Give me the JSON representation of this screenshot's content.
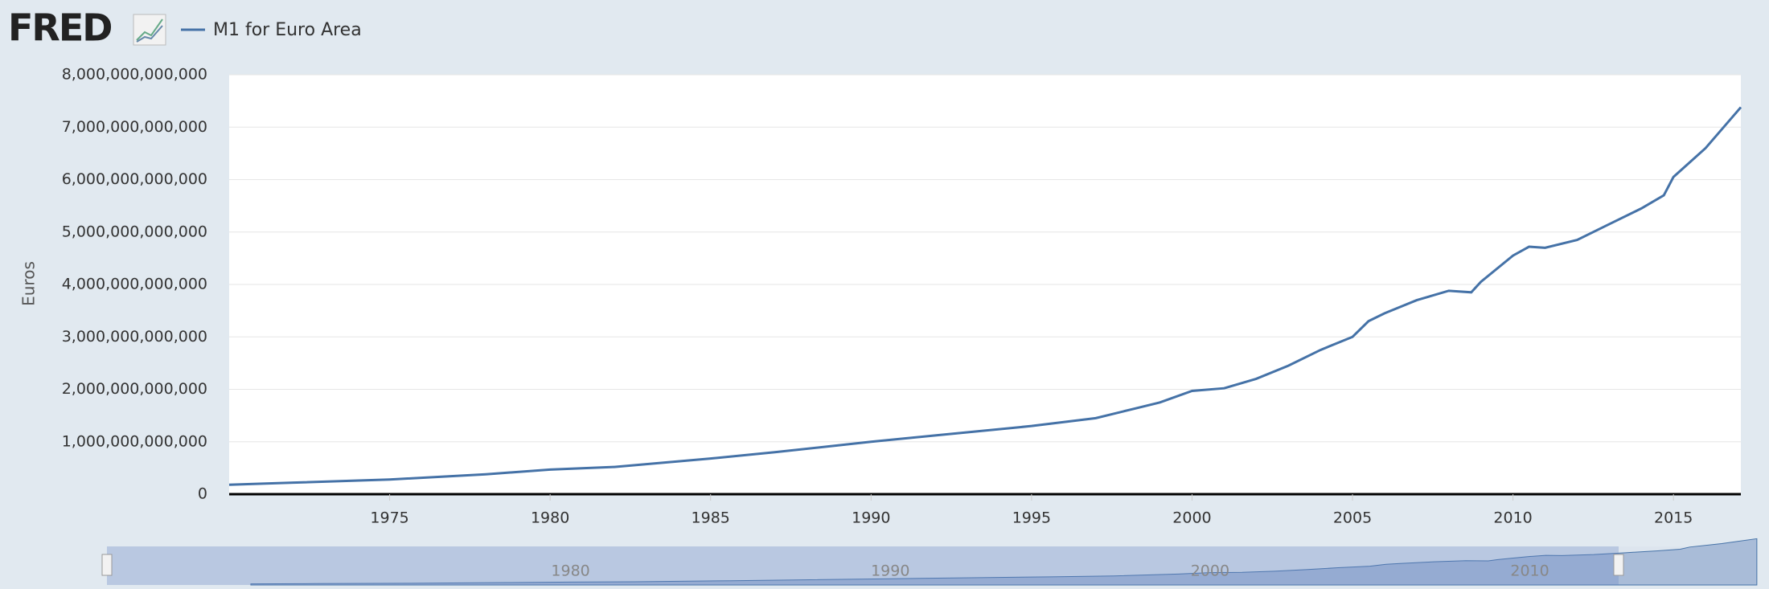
{
  "header": {
    "logo": "FRED"
  },
  "chart_data": {
    "type": "line",
    "y_label": "Euros",
    "x": [
      1970,
      1972,
      1975,
      1978,
      1980,
      1982,
      1985,
      1987,
      1990,
      1992,
      1995,
      1997,
      1999,
      2000,
      2001,
      2002,
      2003,
      2004,
      2005,
      2005.5,
      2006,
      2007,
      2008,
      2008.7,
      2009,
      2010,
      2010.5,
      2011,
      2012,
      2013,
      2014,
      2014.7,
      2015,
      2016,
      2017.1
    ],
    "series": [
      {
        "name": "M1 for Euro Area",
        "color": "#4572a7",
        "values": [
          180000000000,
          220000000000,
          280000000000,
          380000000000,
          470000000000,
          520000000000,
          680000000000,
          800000000000,
          1000000000000,
          1120000000000,
          1300000000000,
          1450000000000,
          1750000000000,
          1970000000000,
          2020000000000,
          2200000000000,
          2450000000000,
          2750000000000,
          3000000000000,
          3300000000000,
          3450000000000,
          3700000000000,
          3880000000000,
          3850000000000,
          4050000000000,
          4550000000000,
          4720000000000,
          4700000000000,
          4850000000000,
          5150000000000,
          5450000000000,
          5700000000000,
          6050000000000,
          6600000000000,
          7380000000000
        ]
      }
    ],
    "xlim": [
      1970,
      2017.1
    ],
    "xticks": [
      1975,
      1980,
      1985,
      1990,
      1995,
      2000,
      2005,
      2010,
      2015
    ],
    "ylim": [
      0,
      8000000000000
    ],
    "yticks": [
      0,
      {
        "value": 1000000000000,
        "label": "1,000,000,000,000"
      },
      {
        "value": 2000000000000,
        "label": "2,000,000,000,000"
      },
      {
        "value": 3000000000000,
        "label": "3,000,000,000,000"
      },
      {
        "value": 4000000000000,
        "label": "4,000,000,000,000"
      },
      {
        "value": 5000000000000,
        "label": "5,000,000,000,000"
      },
      {
        "value": 6000000000000,
        "label": "6,000,000,000,000"
      },
      {
        "value": 7000000000000,
        "label": "7,000,000,000,000"
      },
      {
        "value": 8000000000000,
        "label": "8,000,000,000,000"
      }
    ],
    "grid": true,
    "navigator": {
      "xlim": [
        1965.5,
        2016.6
      ],
      "xticks": [
        1980,
        1990,
        2000,
        2010
      ]
    }
  }
}
